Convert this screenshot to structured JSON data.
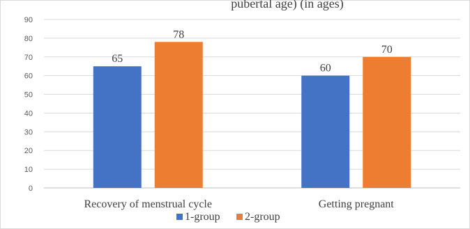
{
  "chart_data": {
    "type": "bar",
    "title": "pubertal age) (in ages)",
    "categories": [
      "Recovery of menstrual cycle",
      "Getting pregnant"
    ],
    "series": [
      {
        "name": "1-group",
        "values": [
          65,
          60
        ],
        "color": "#4472c4"
      },
      {
        "name": "2-group",
        "values": [
          78,
          70
        ],
        "color": "#ed7d31"
      }
    ],
    "ylim": [
      0,
      90
    ],
    "yticks": [
      0,
      10,
      20,
      30,
      40,
      50,
      60,
      70,
      80,
      90
    ],
    "grid": true,
    "legend_position": "bottom",
    "xlabel": "",
    "ylabel": ""
  }
}
